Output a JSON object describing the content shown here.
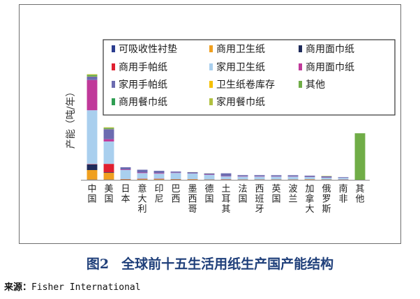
{
  "chart_data": {
    "type": "bar",
    "stacked": true,
    "ylabel": "产能（吨/年）",
    "categories": [
      "中国",
      "美国",
      "日本",
      "意大利",
      "印尼",
      "巴西",
      "墨西哥",
      "德国",
      "土耳其",
      "法国",
      "西班牙",
      "英国",
      "波兰",
      "加拿大",
      "俄罗斯",
      "南非",
      "其他"
    ],
    "series": [
      {
        "name": "可吸收性衬垫",
        "color": "#2b3d8f",
        "values": [
          0.2,
          0.2,
          0,
          0,
          0,
          0,
          0,
          0,
          0,
          0,
          0,
          0,
          0,
          0,
          0,
          0,
          0
        ]
      },
      {
        "name": "商用卫生纸",
        "color": "#f0a020",
        "values": [
          8.5,
          6.0,
          0.3,
          0.5,
          0.5,
          0.3,
          0.4,
          0.2,
          0.2,
          0.2,
          0.2,
          0.2,
          0.2,
          0.3,
          0.2,
          0.1,
          0
        ]
      },
      {
        "name": "商用面巾纸",
        "color": "#1e2a5a",
        "values": [
          5.0,
          0.5,
          0.2,
          0.2,
          0.2,
          0.2,
          0.1,
          0.1,
          0.1,
          0.1,
          0.1,
          0.1,
          0.1,
          0.1,
          0.1,
          0.1,
          0
        ]
      },
      {
        "name": "商用手帕纸",
        "color": "#e02030",
        "values": [
          0.3,
          7.5,
          0.2,
          0.3,
          0.3,
          0.1,
          0.1,
          0.1,
          0.2,
          0.1,
          0.1,
          0.1,
          0.1,
          0.1,
          0.1,
          0.1,
          0
        ]
      },
      {
        "name": "家用卫生纸",
        "color": "#a9cfee",
        "values": [
          48,
          20,
          8,
          5,
          4.5,
          5.5,
          5,
          4,
          2.5,
          2.5,
          2.5,
          2.5,
          2.5,
          2,
          1.5,
          1.5,
          0
        ]
      },
      {
        "name": "商用面巾纸",
        "color": "#c0399a",
        "values": [
          27,
          2,
          0.5,
          0.5,
          0.5,
          0.3,
          0.2,
          0.3,
          0.3,
          0.3,
          0.3,
          0.2,
          0.2,
          0.2,
          0.2,
          0.1,
          0
        ]
      },
      {
        "name": "家用手帕纸",
        "color": "#6b6bb0",
        "values": [
          3,
          9,
          2,
          2.5,
          2,
          1,
          1,
          1,
          2.5,
          1,
          1,
          1,
          1,
          1,
          1,
          0.5,
          0
        ]
      },
      {
        "name": "卫生纸卷库存",
        "color": "#f5c000",
        "values": [
          0.3,
          0.3,
          0,
          0,
          0,
          0,
          0,
          0,
          0,
          0,
          0,
          0,
          0,
          0,
          0,
          0,
          0
        ]
      },
      {
        "name": "其他",
        "color": "#70ad47",
        "values": [
          0,
          0,
          0,
          0,
          0,
          0,
          0,
          0,
          0,
          0,
          0,
          0,
          0,
          0,
          0,
          0,
          41.5
        ]
      },
      {
        "name": "商用餐巾纸",
        "color": "#2f9e52",
        "values": [
          0.8,
          0.5,
          0,
          0,
          0,
          0,
          0,
          0,
          0,
          0,
          0,
          0,
          0,
          0,
          0,
          0,
          0
        ]
      },
      {
        "name": "家用餐巾纸",
        "color": "#b0c040",
        "values": [
          1.0,
          0.8,
          0,
          0,
          0,
          0,
          0.1,
          0.1,
          0,
          0,
          0,
          0,
          0,
          0,
          0.3,
          0,
          0
        ]
      }
    ],
    "ylim": [
      0,
      100
    ],
    "grid": false,
    "legend_position": "top-right"
  },
  "caption": {
    "number": "图2",
    "title": "全球前十五生活用纸生产国产能结构"
  },
  "source": {
    "label": "来源：",
    "text": "Fisher International"
  }
}
